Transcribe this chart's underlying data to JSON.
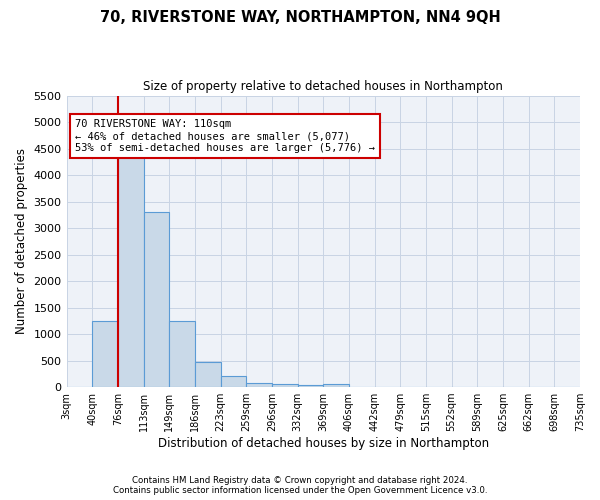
{
  "title1": "70, RIVERSTONE WAY, NORTHAMPTON, NN4 9QH",
  "title2": "Size of property relative to detached houses in Northampton",
  "xlabel": "Distribution of detached houses by size in Northampton",
  "ylabel": "Number of detached properties",
  "footnote1": "Contains HM Land Registry data © Crown copyright and database right 2024.",
  "footnote2": "Contains public sector information licensed under the Open Government Licence v3.0.",
  "bin_labels": [
    "3sqm",
    "40sqm",
    "76sqm",
    "113sqm",
    "149sqm",
    "186sqm",
    "223sqm",
    "259sqm",
    "296sqm",
    "332sqm",
    "369sqm",
    "406sqm",
    "442sqm",
    "479sqm",
    "515sqm",
    "552sqm",
    "589sqm",
    "625sqm",
    "662sqm",
    "698sqm",
    "735sqm"
  ],
  "bar_heights": [
    0,
    1255,
    4350,
    3300,
    1255,
    475,
    215,
    85,
    55,
    35,
    55,
    0,
    0,
    0,
    0,
    0,
    0,
    0,
    0,
    0,
    0
  ],
  "bar_color": "#c9d9e8",
  "bar_edge_color": "#5b9bd5",
  "bar_edge_width": 0.8,
  "grid_color": "#c8d4e4",
  "bg_color": "#eef2f8",
  "red_line_color": "#cc0000",
  "annotation_text": "70 RIVERSTONE WAY: 110sqm\n← 46% of detached houses are smaller (5,077)\n53% of semi-detached houses are larger (5,776) →",
  "annotation_box_color": "#ffffff",
  "annotation_box_edge": "#cc0000",
  "ylim": [
    0,
    5500
  ],
  "yticks": [
    0,
    500,
    1000,
    1500,
    2000,
    2500,
    3000,
    3500,
    4000,
    4500,
    5000,
    5500
  ]
}
